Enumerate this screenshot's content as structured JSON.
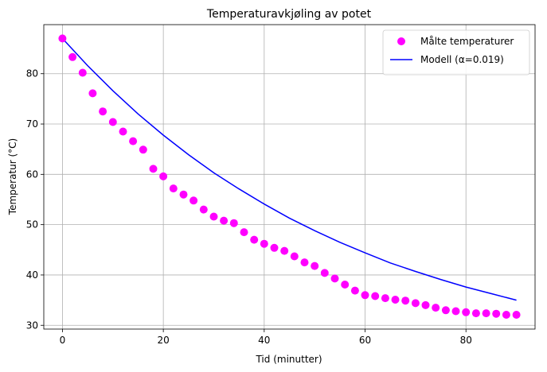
{
  "chart_data": {
    "type": "scatter",
    "title": "Temperaturavkjøling av potet",
    "xlabel": "Tid (minutter)",
    "ylabel": "Temperatur (°C)",
    "xlim": [
      -3.7,
      93.7
    ],
    "ylim": [
      29.25,
      89.75
    ],
    "x_ticks": [
      0,
      20,
      40,
      60,
      80
    ],
    "y_ticks": [
      30,
      40,
      50,
      60,
      70,
      80
    ],
    "grid": true,
    "legend_position": "top-right",
    "series": [
      {
        "name": "Målte temperaturer",
        "type": "scatter",
        "color": "#ff00ff",
        "x": [
          0,
          2,
          4,
          6,
          8,
          10,
          12,
          14,
          16,
          18,
          20,
          22,
          24,
          26,
          28,
          30,
          32,
          34,
          36,
          38,
          40,
          42,
          44,
          46,
          48,
          50,
          52,
          54,
          56,
          58,
          60,
          62,
          64,
          66,
          68,
          70,
          72,
          74,
          76,
          78,
          80,
          82,
          84,
          86,
          88,
          90
        ],
        "y": [
          87.0,
          83.3,
          80.2,
          76.1,
          72.5,
          70.4,
          68.5,
          66.6,
          64.9,
          61.1,
          59.6,
          57.2,
          56.0,
          54.8,
          53.0,
          51.6,
          50.8,
          50.3,
          48.5,
          47.0,
          46.2,
          45.4,
          44.8,
          43.7,
          42.5,
          41.8,
          40.4,
          39.3,
          38.1,
          36.9,
          36.0,
          35.8,
          35.4,
          35.1,
          34.9,
          34.4,
          34.0,
          33.5,
          33.0,
          32.8,
          32.6,
          32.4,
          32.4,
          32.3,
          32.1,
          32.1
        ]
      },
      {
        "name": "Modell (α=0.019)",
        "type": "line",
        "color": "#0000ff",
        "x": [
          0,
          5,
          10,
          15,
          20,
          25,
          30,
          35,
          40,
          45,
          50,
          55,
          60,
          65,
          70,
          75,
          80,
          85,
          90
        ],
        "y": [
          87.0,
          81.6,
          76.6,
          72.0,
          67.8,
          63.9,
          60.3,
          57.1,
          54.1,
          51.3,
          48.8,
          46.5,
          44.4,
          42.4,
          40.7,
          39.1,
          37.6,
          36.3,
          35.0
        ]
      }
    ]
  }
}
